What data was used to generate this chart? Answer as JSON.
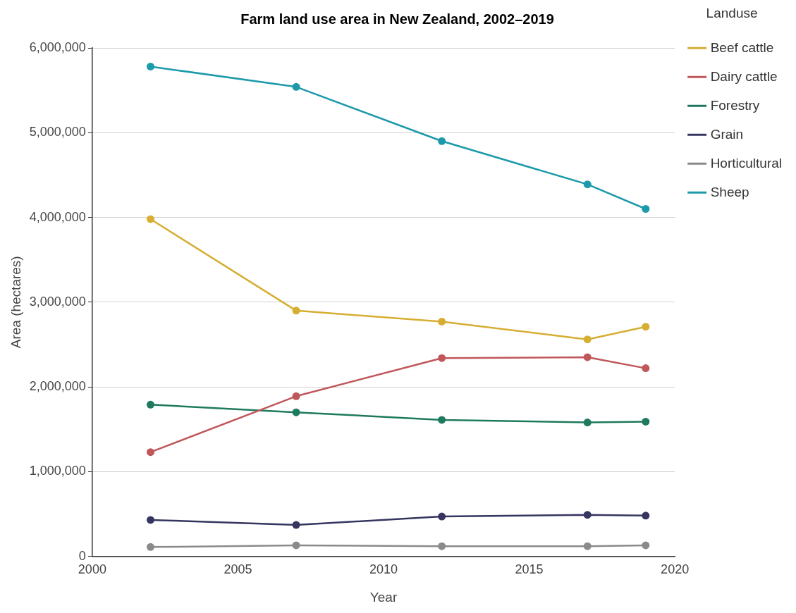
{
  "chart_data": {
    "type": "line",
    "title": "Farm land use area in New Zealand, 2002–2019",
    "xlabel": "Year",
    "ylabel": "Area (hectares)",
    "legend_title": "Landuse",
    "x": [
      2002,
      2007,
      2012,
      2017,
      2019
    ],
    "series": [
      {
        "name": "Beef cattle",
        "color": "#d6ae32",
        "values": [
          3980000,
          2900000,
          2770000,
          2560000,
          2710000
        ]
      },
      {
        "name": "Dairy cattle",
        "color": "#c0575a",
        "values": [
          1230000,
          1890000,
          2340000,
          2350000,
          2220000
        ]
      },
      {
        "name": "Forestry",
        "color": "#1e7a5e",
        "values": [
          1790000,
          1700000,
          1610000,
          1580000,
          1590000
        ]
      },
      {
        "name": "Grain",
        "color": "#35355f",
        "values": [
          430000,
          370000,
          470000,
          490000,
          480000
        ]
      },
      {
        "name": "Horticultural",
        "color": "#8a8a8a",
        "values": [
          110000,
          130000,
          120000,
          120000,
          130000
        ]
      },
      {
        "name": "Sheep",
        "color": "#1c9aaa",
        "values": [
          5780000,
          5540000,
          4900000,
          4390000,
          4100000
        ]
      }
    ],
    "xlim": [
      2000,
      2020
    ],
    "xticks": [
      2000,
      2005,
      2010,
      2015,
      2020
    ],
    "ylim": [
      0,
      6000000
    ],
    "yticks": [
      0,
      {
        "value": 1000000,
        "label": "1,000,000"
      },
      {
        "value": 2000000,
        "label": "2,000,000"
      },
      {
        "value": 3000000,
        "label": "3,000,000"
      },
      {
        "value": 4000000,
        "label": "4,000,000"
      },
      {
        "value": 5000000,
        "label": "5,000,000"
      },
      {
        "value": 6000000,
        "label": "6,000,000"
      }
    ],
    "grid": "y",
    "legend": "right",
    "marker": "circle",
    "line_style": "solid"
  }
}
